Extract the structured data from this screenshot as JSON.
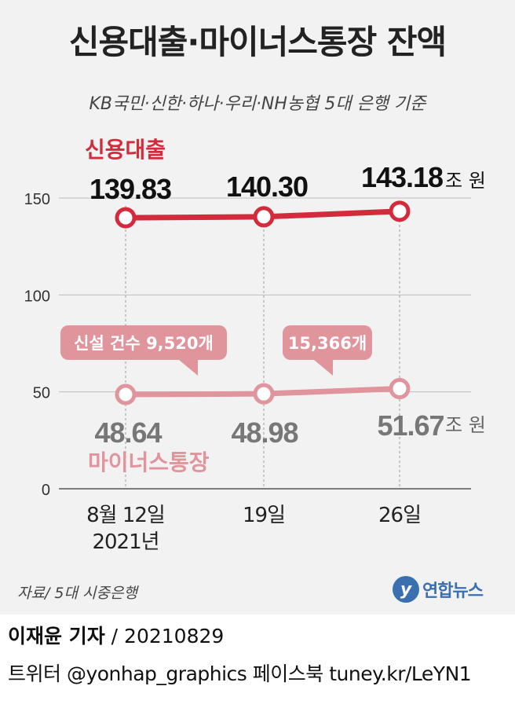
{
  "title": "신용대출·마이너스통장 잔액",
  "subtitle": "KB국민·신한·하나·우리·NH농협 5대 은행 기준",
  "source": "자료/ 5대 시중은행",
  "logo": {
    "text": "연합뉴스",
    "icon": "yonhap-logo-icon",
    "color": "#3a6fb0"
  },
  "reporter": {
    "name": "이재윤 기자",
    "date": "/ 20210829"
  },
  "social": "트위터 @yonhap_graphics  페이스북 tuney.kr/LeYN1",
  "chart_data": {
    "type": "line",
    "x_ticks": [
      "8월 12일",
      "19일",
      "26일"
    ],
    "x_sub_label": "2021년",
    "y_ticks": [
      0,
      50,
      100,
      150
    ],
    "ylim": [
      0,
      150
    ],
    "unit": "조 원",
    "grid": true,
    "series": [
      {
        "name": "신용대출",
        "color": "#d22b3c",
        "values": [
          139.83,
          140.3,
          143.18
        ],
        "labels": [
          "139.83",
          "140.30",
          "143.18"
        ]
      },
      {
        "name": "마이너스통장",
        "color": "#e0949c",
        "values": [
          48.64,
          48.98,
          51.67
        ],
        "labels": [
          "48.64",
          "48.98",
          "51.67"
        ]
      }
    ],
    "annotations": [
      "신설 건수 9,520개",
      "15,366개"
    ]
  }
}
